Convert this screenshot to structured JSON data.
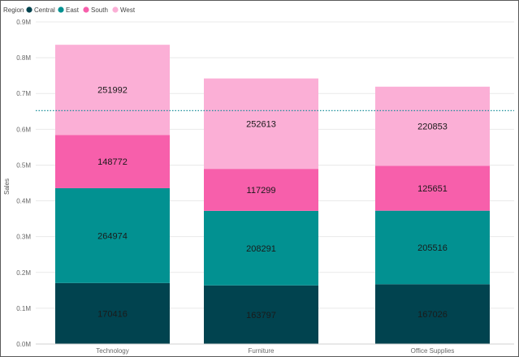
{
  "chart_data": {
    "type": "stacked-bar",
    "legend_title": "Region",
    "ylabel": "Sales",
    "xlabel": "",
    "ylim": [
      0,
      900000
    ],
    "y_ticks": [
      {
        "value": 0,
        "label": "0.0M"
      },
      {
        "value": 100000,
        "label": "0.1M"
      },
      {
        "value": 200000,
        "label": "0.2M"
      },
      {
        "value": 300000,
        "label": "0.3M"
      },
      {
        "value": 400000,
        "label": "0.4M"
      },
      {
        "value": 500000,
        "label": "0.5M"
      },
      {
        "value": 600000,
        "label": "0.6M"
      },
      {
        "value": 700000,
        "label": "0.7M"
      },
      {
        "value": 800000,
        "label": "0.8M"
      },
      {
        "value": 900000,
        "label": "0.9M"
      }
    ],
    "categories": [
      "Technology",
      "Furniture",
      "Office Supplies"
    ],
    "series": [
      {
        "name": "Central",
        "color": "#01434f",
        "values": [
          170416,
          163797,
          167026
        ]
      },
      {
        "name": "East",
        "color": "#029191",
        "values": [
          264974,
          208291,
          205516
        ]
      },
      {
        "name": "South",
        "color": "#f75fab",
        "values": [
          148772,
          117299,
          125651
        ]
      },
      {
        "name": "West",
        "color": "#fbafd6",
        "values": [
          251992,
          252613,
          220853
        ]
      }
    ],
    "reference_line": {
      "value": 652000,
      "style": "dotted",
      "color": "#1a8f9b"
    },
    "grid": true,
    "legend_position": "top-left"
  }
}
